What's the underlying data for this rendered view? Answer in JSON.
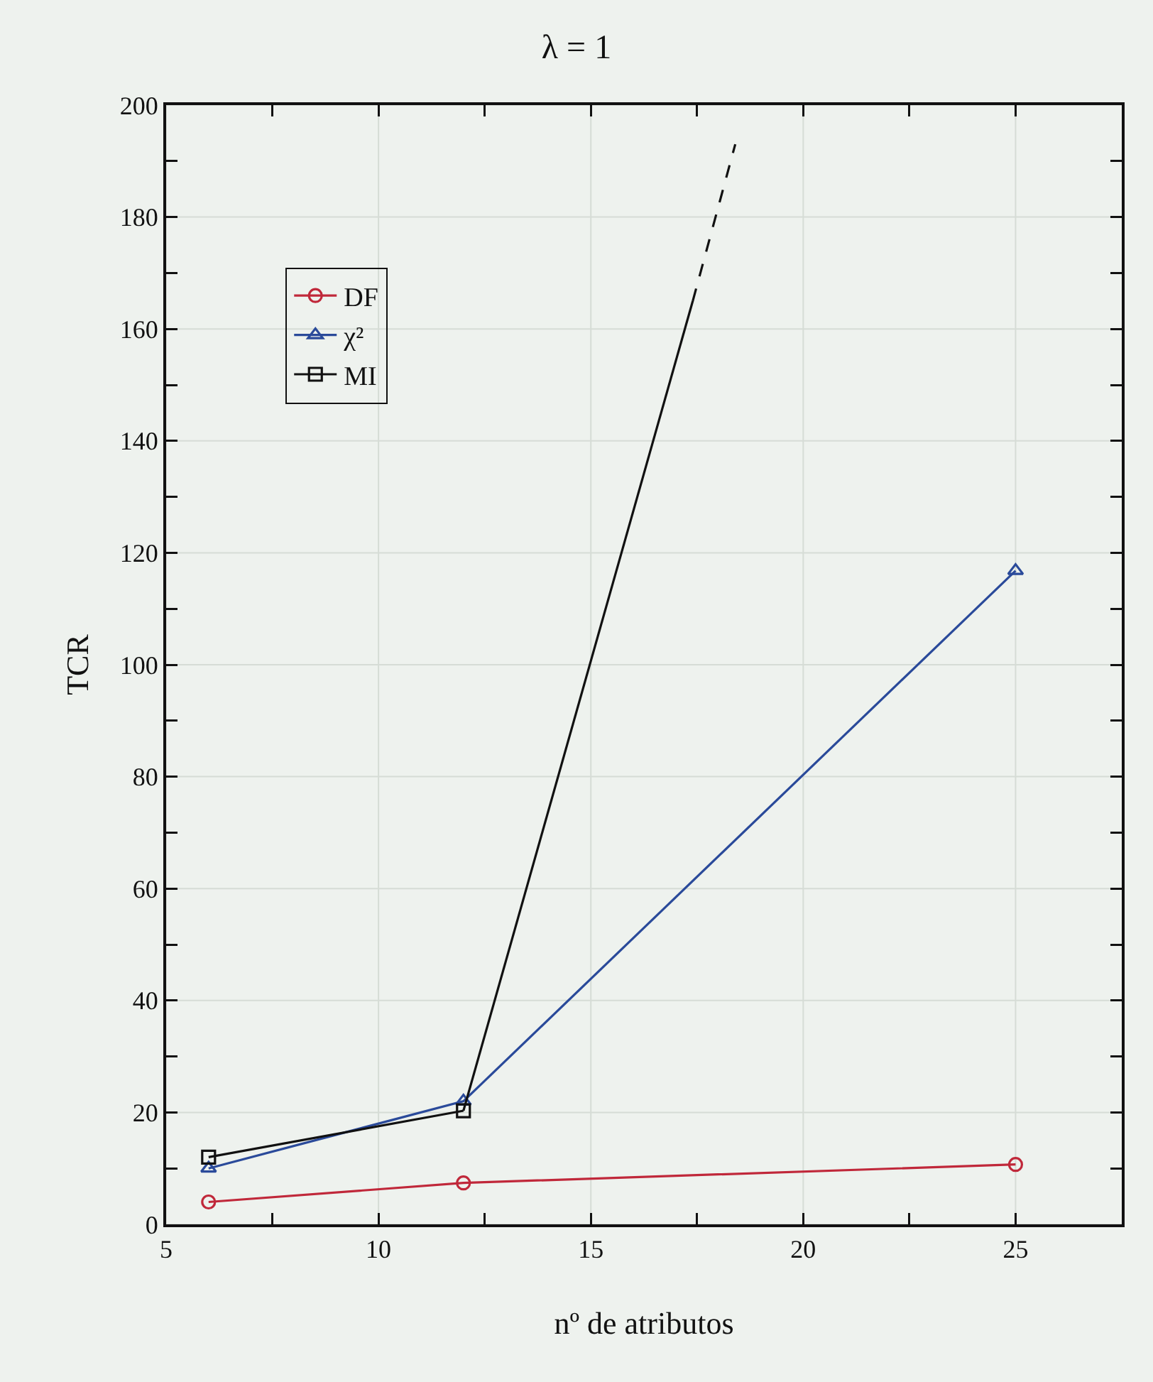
{
  "chart_data": {
    "type": "line",
    "title": "λ = 1",
    "xlabel": "nº de atributos",
    "ylabel": "TCR",
    "xlim": [
      5,
      27.5
    ],
    "xticks": [
      5,
      {
        "value": 7.5,
        "label": null
      },
      10,
      {
        "value": 12.5,
        "label": null
      },
      15,
      {
        "value": 17.5,
        "label": null
      },
      20,
      {
        "value": 22.5,
        "label": null
      },
      25
    ],
    "ylim": [
      0,
      200
    ],
    "yticks": [
      0,
      {
        "value": 10,
        "label": null
      },
      20,
      {
        "value": 30,
        "label": null
      },
      40,
      {
        "value": 50,
        "label": null
      },
      60,
      {
        "value": 70,
        "label": null
      },
      80,
      {
        "value": 90,
        "label": null
      },
      100,
      {
        "value": 110,
        "label": null
      },
      120,
      {
        "value": 130,
        "label": null
      },
      140,
      {
        "value": 150,
        "label": null
      },
      160,
      {
        "value": 170,
        "label": null
      },
      180,
      {
        "value": 190,
        "label": null
      },
      200
    ],
    "grid": true,
    "legend": "top left",
    "series": [
      {
        "name": "DF",
        "color": "#c0283a",
        "x": [
          6,
          12,
          25
        ],
        "values": [
          4,
          7.4,
          10.7
        ],
        "marker": "circle",
        "line_style": "solid"
      },
      {
        "name": "χ²",
        "color": "#2a4a9a",
        "x": [
          6,
          12,
          25
        ],
        "values": [
          10,
          22,
          116.8
        ],
        "marker": "triangle",
        "line_style": "solid"
      },
      {
        "name": "MI",
        "color": "#111111",
        "x": [
          6,
          12
        ],
        "values": [
          12,
          20.3
        ],
        "marker": "square",
        "line_style": "solid"
      },
      {
        "color": "#111111",
        "x": [
          12,
          17.4
        ],
        "values": [
          20.3,
          165
        ],
        "marker": "none",
        "line_style": "solid"
      },
      {
        "color": "#111111",
        "x": [
          17.4,
          18.4
        ],
        "values": [
          165,
          193
        ],
        "marker": "none",
        "line_style": "dashed"
      }
    ]
  }
}
